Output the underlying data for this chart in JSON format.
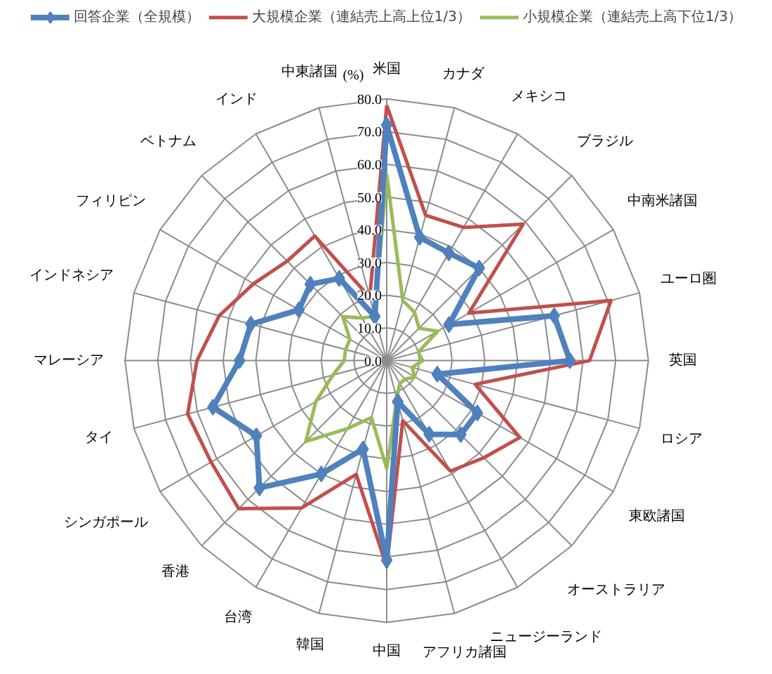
{
  "chart_data": {
    "type": "radar",
    "ylabel": "(%)",
    "categories": [
      "米国",
      "カナダ",
      "メキシコ",
      "ブラジル",
      "中南米諸国",
      "ユーロ圏",
      "英国",
      "ロシア",
      "東欧諸国",
      "オーストラリア",
      "ニュージーランド",
      "アフリカ諸国",
      "中国",
      "韓国",
      "台湾",
      "香港",
      "シンガポール",
      "タイ",
      "マレーシア",
      "インドネシア",
      "フィリピン",
      "ベトナム",
      "インド",
      "中東諸国"
    ],
    "series": [
      {
        "name": "回答企業（全規模）",
        "color": "#4f81bd",
        "marker": "diamond",
        "values": [
          72,
          39,
          38,
          40,
          22,
          53,
          56,
          16,
          32,
          32,
          26,
          13,
          61,
          28,
          40,
          55,
          46,
          55,
          45,
          43,
          31,
          33,
          29,
          14
        ]
      },
      {
        "name": "大規模企業（連結売上高上位1/3）",
        "color": "#c0504d",
        "marker": "none",
        "values": [
          78,
          46,
          47,
          59,
          29,
          71,
          62,
          28,
          47,
          42,
          39,
          19,
          63,
          36,
          52,
          64,
          62,
          63,
          58,
          53,
          47,
          43,
          44,
          20
        ]
      },
      {
        "name": "小規模企業（連結売上高下位1/3）",
        "color": "#9bbb59",
        "marker": "none",
        "values": [
          57,
          19,
          17,
          14,
          18,
          10,
          11,
          8,
          10,
          8,
          8,
          12,
          33,
          18,
          24,
          35,
          25,
          17,
          13,
          13,
          13,
          19,
          15,
          14
        ]
      }
    ],
    "ylim": [
      0,
      80
    ],
    "yticks": [
      {
        "value": 0,
        "label": "0.0"
      },
      {
        "value": 10,
        "label": "10.0"
      },
      {
        "value": 20,
        "label": "20.0"
      },
      {
        "value": 30,
        "label": "30.0"
      },
      {
        "value": 40,
        "label": "40.0"
      },
      {
        "value": 50,
        "label": "50.0"
      },
      {
        "value": 60,
        "label": "60.0"
      },
      {
        "value": 70,
        "label": "70.0"
      },
      {
        "value": 80,
        "label": "80.0"
      }
    ],
    "grid": true,
    "legend": "top"
  }
}
